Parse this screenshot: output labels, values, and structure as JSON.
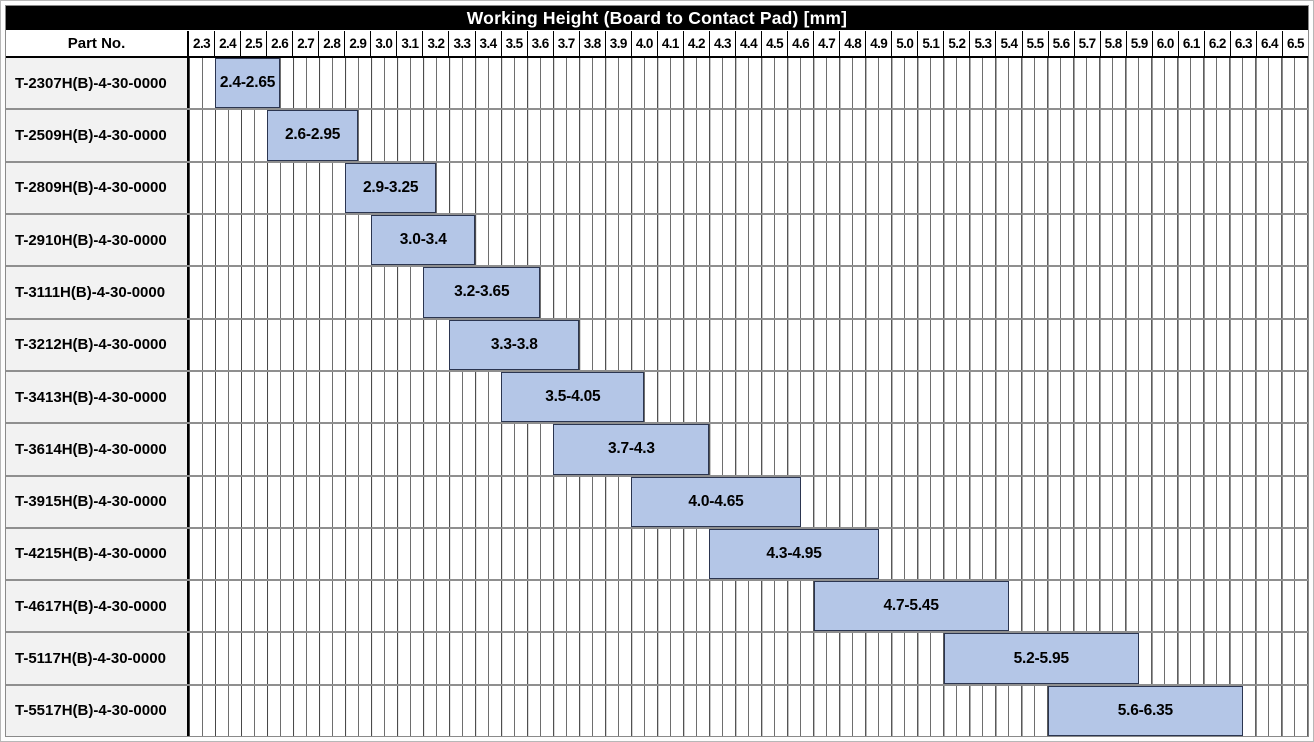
{
  "title": "Working Height (Board to Contact Pad) [mm]",
  "part_col_header": "Part No.",
  "colors": {
    "title_bg": "#000000",
    "title_fg": "#ffffff",
    "bar_fill": "#b4c6e7",
    "bar_border": "#2b3550",
    "label_col_bg": "#f2f2f2",
    "grid_major": "#474747",
    "grid_minor": "#6e6e6e",
    "row_separator": "#8f8f8f"
  },
  "chart_data": {
    "type": "bar",
    "subtype": "horizontal-range-gantt",
    "title": "Working Height (Board to Contact Pad) [mm]",
    "x_axis": {
      "min": 2.3,
      "max": 6.6,
      "major_step": 0.1,
      "minor_step": 0.05,
      "tick_labels": [
        "2.3",
        "2.4",
        "2.5",
        "2.6",
        "2.7",
        "2.8",
        "2.9",
        "3.0",
        "3.1",
        "3.2",
        "3.3",
        "3.4",
        "3.5",
        "3.6",
        "3.7",
        "3.8",
        "3.9",
        "4.0",
        "4.1",
        "4.2",
        "4.3",
        "4.4",
        "4.5",
        "4.6",
        "4.7",
        "4.8",
        "4.9",
        "5.0",
        "5.1",
        "5.2",
        "5.3",
        "5.4",
        "5.5",
        "5.6",
        "5.7",
        "5.8",
        "5.9",
        "6.0",
        "6.1",
        "6.2",
        "6.3",
        "6.4",
        "6.5"
      ]
    },
    "rows": [
      {
        "part_no": "T-2307H(B)-4-30-0000",
        "start": 2.4,
        "end": 2.65,
        "label": "2.4-2.65"
      },
      {
        "part_no": "T-2509H(B)-4-30-0000",
        "start": 2.6,
        "end": 2.95,
        "label": "2.6-2.95"
      },
      {
        "part_no": "T-2809H(B)-4-30-0000",
        "start": 2.9,
        "end": 3.25,
        "label": "2.9-3.25"
      },
      {
        "part_no": "T-2910H(B)-4-30-0000",
        "start": 3.0,
        "end": 3.4,
        "label": "3.0-3.4"
      },
      {
        "part_no": "T-3111H(B)-4-30-0000",
        "start": 3.2,
        "end": 3.65,
        "label": "3.2-3.65"
      },
      {
        "part_no": "T-3212H(B)-4-30-0000",
        "start": 3.3,
        "end": 3.8,
        "label": "3.3-3.8"
      },
      {
        "part_no": "T-3413H(B)-4-30-0000",
        "start": 3.5,
        "end": 4.05,
        "label": "3.5-4.05"
      },
      {
        "part_no": "T-3614H(B)-4-30-0000",
        "start": 3.7,
        "end": 4.3,
        "label": "3.7-4.3"
      },
      {
        "part_no": "T-3915H(B)-4-30-0000",
        "start": 4.0,
        "end": 4.65,
        "label": "4.0-4.65"
      },
      {
        "part_no": "T-4215H(B)-4-30-0000",
        "start": 4.3,
        "end": 4.95,
        "label": "4.3-4.95"
      },
      {
        "part_no": "T-4617H(B)-4-30-0000",
        "start": 4.7,
        "end": 5.45,
        "label": "4.7-5.45"
      },
      {
        "part_no": "T-5117H(B)-4-30-0000",
        "start": 5.2,
        "end": 5.95,
        "label": "5.2-5.95"
      },
      {
        "part_no": "T-5517H(B)-4-30-0000",
        "start": 5.6,
        "end": 6.35,
        "label": "5.6-6.35"
      }
    ]
  }
}
